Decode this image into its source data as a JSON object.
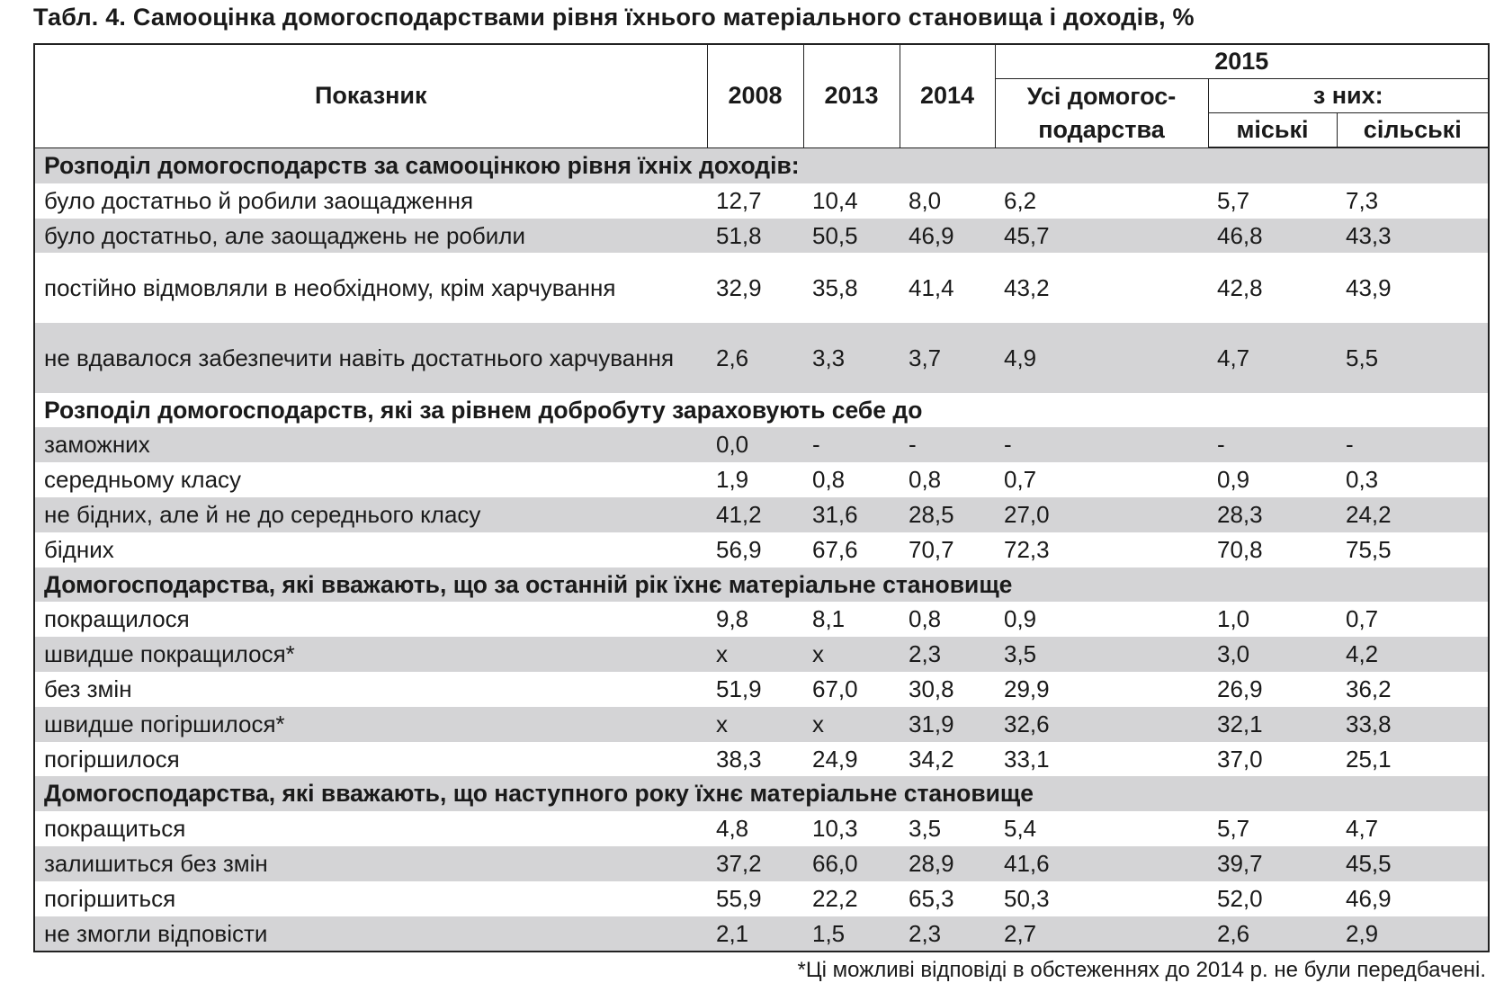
{
  "title": "Табл. 4. Самооцінка домогосподарствами рівня їхнього матеріального становища і доходів, %",
  "header": {
    "indicator": "Показник",
    "years": [
      "2008",
      "2013",
      "2014"
    ],
    "year_2015": "2015",
    "all_households": "Усі домогос-подарства",
    "of_them": "з них:",
    "urban": "міські",
    "rural": "сільські"
  },
  "rows": [
    {
      "type": "section",
      "label": "Розподіл домогосподарств за самооцінкою рівня їхніх доходів:"
    },
    {
      "type": "data",
      "label": "було достатньо й робили заощадження",
      "values": [
        "12,7",
        "10,4",
        "8,0",
        "6,2",
        "5,7",
        "7,3"
      ]
    },
    {
      "type": "data",
      "label": "було достатньо, але заощаджень не робили",
      "values": [
        "51,8",
        "50,5",
        "46,9",
        "45,7",
        "46,8",
        "43,3"
      ]
    },
    {
      "type": "data",
      "label": "постійно відмовляли в необхідному, крім харчування",
      "values": [
        "32,9",
        "35,8",
        "41,4",
        "43,2",
        "42,8",
        "43,9"
      ],
      "double": true
    },
    {
      "type": "data",
      "label": "не вдавалося забезпечити навіть достатнього харчування",
      "values": [
        "2,6",
        "3,3",
        "3,7",
        "4,9",
        "4,7",
        "5,5"
      ],
      "double": true
    },
    {
      "type": "section",
      "label": "Розподіл домогосподарств, які за рівнем добробуту зараховують себе до"
    },
    {
      "type": "data",
      "label": "заможних",
      "values": [
        "0,0",
        "-",
        "-",
        "-",
        "-",
        "-"
      ]
    },
    {
      "type": "data",
      "label": "середньому класу",
      "values": [
        "1,9",
        "0,8",
        "0,8",
        "0,7",
        "0,9",
        "0,3"
      ]
    },
    {
      "type": "data",
      "label": "не бідних, але й не до середнього класу",
      "values": [
        "41,2",
        "31,6",
        "28,5",
        "27,0",
        "28,3",
        "24,2"
      ]
    },
    {
      "type": "data",
      "label": "бідних",
      "values": [
        "56,9",
        "67,6",
        "70,7",
        "72,3",
        "70,8",
        "75,5"
      ]
    },
    {
      "type": "section",
      "label": "Домогосподарства, які вважають, що за останній рік їхнє матеріальне становище"
    },
    {
      "type": "data",
      "label": "покращилося",
      "values": [
        "9,8",
        "8,1",
        "0,8",
        "0,9",
        "1,0",
        "0,7"
      ]
    },
    {
      "type": "data",
      "label": "швидше покращилося*",
      "values": [
        "x",
        "x",
        "2,3",
        "3,5",
        "3,0",
        "4,2"
      ]
    },
    {
      "type": "data",
      "label": "без змін",
      "values": [
        "51,9",
        "67,0",
        "30,8",
        "29,9",
        "26,9",
        "36,2"
      ]
    },
    {
      "type": "data",
      "label": "швидше погіршилося*",
      "values": [
        "x",
        "x",
        "31,9",
        "32,6",
        "32,1",
        "33,8"
      ]
    },
    {
      "type": "data",
      "label": "погіршилося",
      "values": [
        "38,3",
        "24,9",
        "34,2",
        "33,1",
        "37,0",
        "25,1"
      ]
    },
    {
      "type": "section",
      "label": "Домогосподарства, які вважають, що наступного року їхнє матеріальне становище"
    },
    {
      "type": "data",
      "label": "покращиться",
      "values": [
        "4,8",
        "10,3",
        "3,5",
        "5,4",
        "5,7",
        "4,7"
      ]
    },
    {
      "type": "data",
      "label": "залишиться без змін",
      "values": [
        "37,2",
        "66,0",
        "28,9",
        "41,6",
        "39,7",
        "45,5"
      ]
    },
    {
      "type": "data",
      "label": "погіршиться",
      "values": [
        "55,9",
        "22,2",
        "65,3",
        "50,3",
        "52,0",
        "46,9"
      ]
    },
    {
      "type": "data",
      "label": "не змогли відповісти",
      "values": [
        "2,1",
        "1,5",
        "2,3",
        "2,7",
        "2,6",
        "2,9"
      ]
    }
  ],
  "footnote": "*Ці можливі відповіді в обстеженнях до 2014 р. не були передбачені.",
  "colors": {
    "stripe": "#d4d4d6",
    "border": "#222222"
  }
}
